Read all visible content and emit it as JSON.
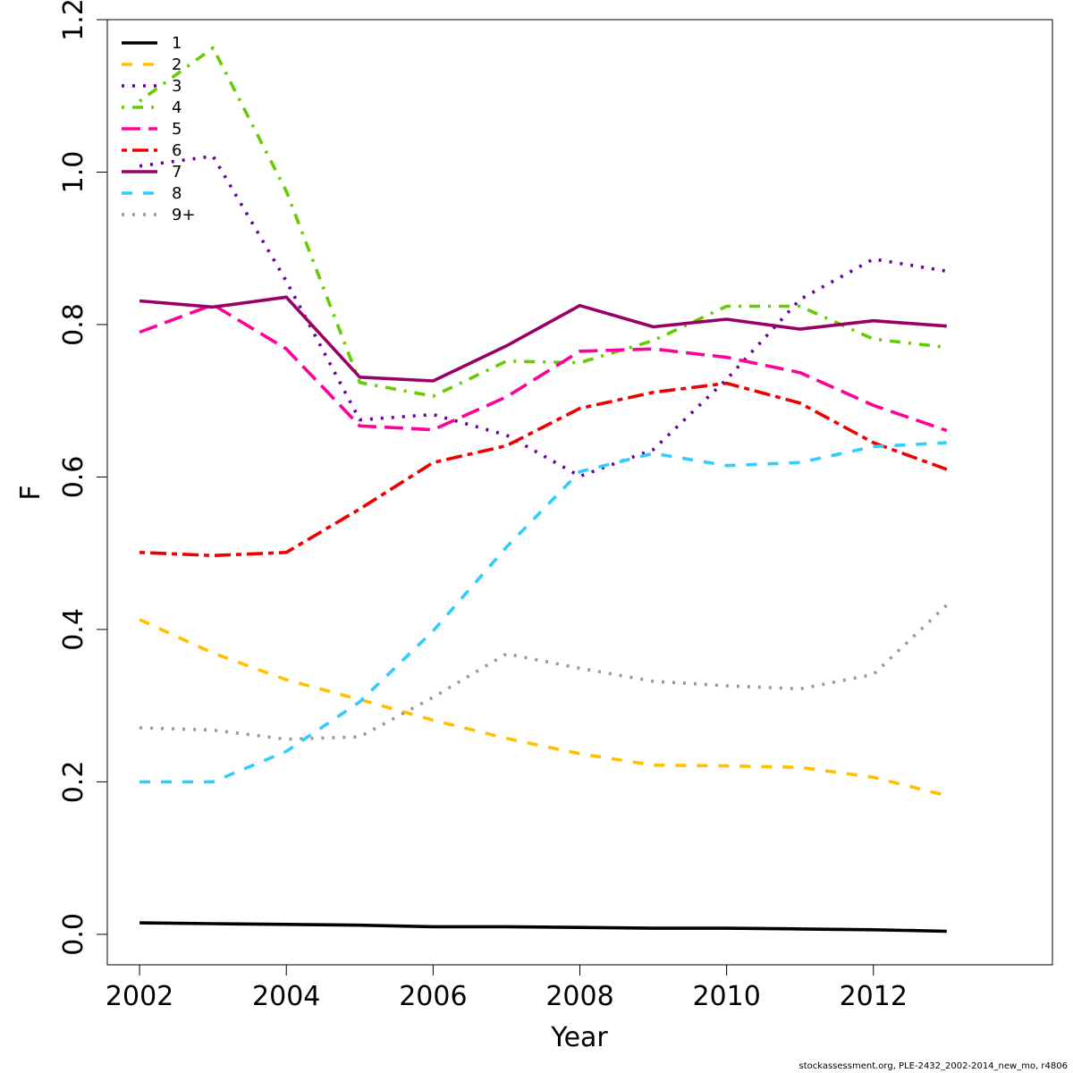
{
  "chart_data": {
    "type": "line",
    "xlabel": "Year",
    "ylabel": "F",
    "xlim": [
      2001.56,
      2014.44
    ],
    "ylim": [
      -0.04,
      1.2
    ],
    "x_ticks": [
      2002,
      2004,
      2006,
      2008,
      2010,
      2012
    ],
    "y_ticks": [
      "0.0",
      "0.2",
      "0.4",
      "0.6",
      "0.8",
      "1.0",
      "1.2"
    ],
    "grid": false,
    "legend_position": "top-left",
    "x": [
      2002,
      2003,
      2004,
      2005,
      2006,
      2007,
      2008,
      2009,
      2010,
      2011,
      2012,
      2013
    ],
    "series": [
      {
        "name": "1",
        "color": "#000000",
        "dash": "solid",
        "values": [
          0.015,
          0.014,
          0.013,
          0.012,
          0.01,
          0.01,
          0.009,
          0.008,
          0.008,
          0.007,
          0.006,
          0.004
        ]
      },
      {
        "name": "2",
        "color": "#FFC000",
        "dash": "dashed",
        "values": [
          0.413,
          0.369,
          0.334,
          0.308,
          0.281,
          0.257,
          0.237,
          0.222,
          0.221,
          0.219,
          0.206,
          0.182
        ]
      },
      {
        "name": "3",
        "color": "#660099",
        "dash": "dotted",
        "values": [
          1.008,
          1.021,
          0.857,
          0.675,
          0.682,
          0.655,
          0.601,
          0.636,
          0.728,
          0.833,
          0.886,
          0.87
        ]
      },
      {
        "name": "4",
        "color": "#66CC00",
        "dash": "dotdash",
        "values": [
          1.093,
          1.163,
          0.975,
          0.724,
          0.706,
          0.752,
          0.75,
          0.779,
          0.824,
          0.824,
          0.781,
          0.77
        ]
      },
      {
        "name": "5",
        "color": "#FF0099",
        "dash": "longdash",
        "values": [
          0.79,
          0.826,
          0.768,
          0.667,
          0.662,
          0.705,
          0.765,
          0.768,
          0.757,
          0.737,
          0.694,
          0.661
        ]
      },
      {
        "name": "6",
        "color": "#EE0000",
        "dash": "twodash",
        "values": [
          0.501,
          0.497,
          0.501,
          0.558,
          0.619,
          0.641,
          0.69,
          0.711,
          0.723,
          0.697,
          0.645,
          0.61
        ]
      },
      {
        "name": "7",
        "color": "#990066",
        "dash": "solid",
        "values": [
          0.831,
          0.823,
          0.836,
          0.731,
          0.726,
          0.772,
          0.825,
          0.797,
          0.807,
          0.794,
          0.805,
          0.798
        ]
      },
      {
        "name": "8",
        "color": "#33CCFF",
        "dash": "dashed",
        "values": [
          0.2,
          0.2,
          0.24,
          0.305,
          0.398,
          0.508,
          0.607,
          0.631,
          0.615,
          0.619,
          0.64,
          0.645
        ]
      },
      {
        "name": "9+",
        "color": "#999999",
        "dash": "dotted",
        "values": [
          0.271,
          0.268,
          0.256,
          0.259,
          0.311,
          0.368,
          0.349,
          0.332,
          0.326,
          0.322,
          0.341,
          0.432
        ]
      }
    ]
  },
  "footer_text": "stockassessment.org, PLE-2432_2002-2014_new_mo, r4806"
}
